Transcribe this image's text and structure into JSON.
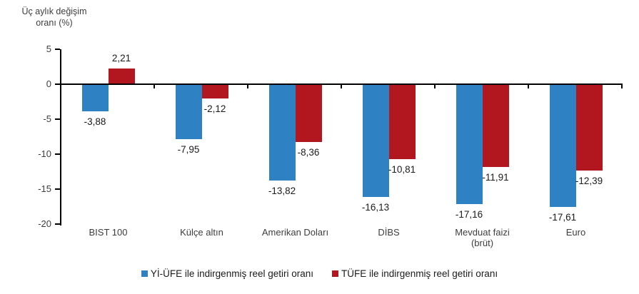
{
  "title": {
    "line1": "Üç aylık değişim",
    "line2": "oranı (%)"
  },
  "chart_data": {
    "type": "bar",
    "title": "Üç aylık değişim oranı (%)",
    "categories": [
      "BIST 100",
      "Külçe altın",
      "Amerikan Doları",
      "DİBS",
      "Mevduat faizi\n(brüt)",
      "Euro"
    ],
    "series": [
      {
        "name": "Yİ-ÜFE ile indirgenmiş reel getiri oranı",
        "color": "#2e81c3",
        "values": [
          -3.88,
          -7.95,
          -13.82,
          -16.13,
          -17.16,
          -17.61
        ],
        "value_labels": [
          "-3,88",
          "-7,95",
          "-13,82",
          "-16,13",
          "-17,16",
          "-17,61"
        ]
      },
      {
        "name": "TÜFE ile indirgenmiş reel getiri oranı",
        "color": "#b2161e",
        "values": [
          2.21,
          -2.12,
          -8.36,
          -10.81,
          -11.91,
          -12.39
        ],
        "value_labels": [
          "2,21",
          "-2,12",
          "-8,36",
          "-10,81",
          "-11,91",
          "-12,39"
        ]
      }
    ],
    "xlabel": "",
    "ylabel": "Üç aylık değişim oranı (%)",
    "y_ticks": [
      5,
      0,
      -5,
      -10,
      -15,
      -20
    ],
    "y_tick_labels": [
      "5",
      "0",
      "-5",
      "-10",
      "-15",
      "-20"
    ],
    "ylim": [
      -20,
      5
    ],
    "grid": false,
    "legend_position": "bottom"
  }
}
